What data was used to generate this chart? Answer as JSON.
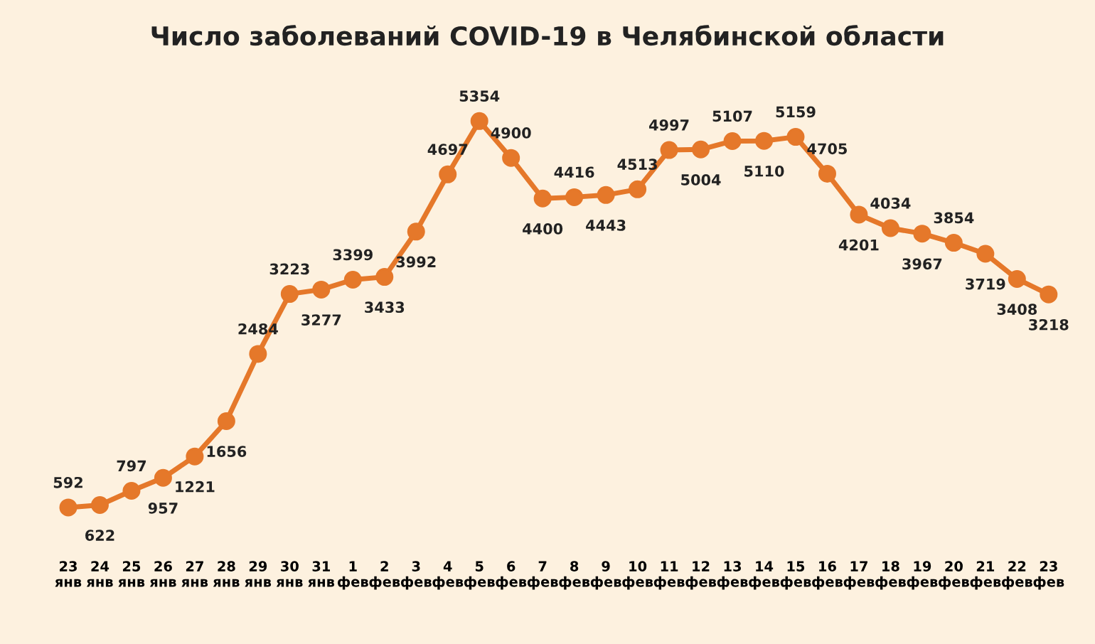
{
  "chart_data": {
    "type": "line",
    "title": "Число заболеваний COVID-19 в Челябинской области",
    "categories": [
      "23\nянв",
      "24\nянв",
      "25\nянв",
      "26\nянв",
      "27\nянв",
      "28\nянв",
      "29\nянв",
      "30\nянв",
      "31\nянв",
      "1\nфев",
      "2\nфев",
      "3\nфев",
      "4\nфев",
      "5\nфев",
      "6\nфев",
      "7\nфев",
      "8\nфев",
      "9\nфев",
      "10\nфев",
      "11\nфев",
      "12\nфев",
      "13\nфев",
      "14\nфев",
      "15\nфев",
      "16\nфев",
      "17\nфев",
      "18\nфев",
      "19\nфев",
      "20\nфев",
      "21\nфев",
      "22\nфев",
      "23\nфев"
    ],
    "series": [
      {
        "color": "#e5782a",
        "values": [
          592,
          622,
          797,
          957,
          1221,
          1656,
          2484,
          3223,
          3277,
          3399,
          3433,
          3992,
          4697,
          5354,
          4900,
          4400,
          4416,
          4443,
          4513,
          4997,
          5004,
          5107,
          5110,
          5159,
          4705,
          4201,
          4034,
          3967,
          3854,
          3719,
          3408,
          3218
        ]
      }
    ],
    "data_labels": true,
    "marker": "circle",
    "line_style": "solid",
    "grid": false,
    "legend": false,
    "tick_labels": "x"
  }
}
